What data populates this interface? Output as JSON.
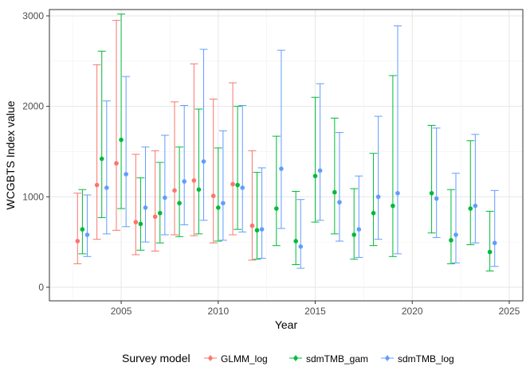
{
  "chart_data": {
    "type": "scatter",
    "subtype": "point-with-errorbars",
    "xlabel": "Year",
    "ylabel": "WCGBTS Index value",
    "xlim": [
      2001.3,
      2025.7
    ],
    "ylim": [
      -150,
      3070
    ],
    "x_ticks": [
      2005,
      2010,
      2015,
      2020,
      2025
    ],
    "y_ticks": [
      0,
      1000,
      2000,
      3000
    ],
    "x_tick_labels": [
      "2005",
      "2010",
      "2015",
      "2020",
      "2025"
    ],
    "y_tick_labels": [
      "0",
      "1000",
      "2000",
      "3000"
    ],
    "grid": true,
    "legend": {
      "title": "Survey model",
      "position": "bottom"
    },
    "series": [
      {
        "name": "GLMM_log",
        "color": "#F8766D",
        "offset": -0.25,
        "points": [
          {
            "year": 2003,
            "value": 510,
            "lower": 260,
            "upper": 1040
          },
          {
            "year": 2004,
            "value": 1130,
            "lower": 530,
            "upper": 2460
          },
          {
            "year": 2005,
            "value": 1370,
            "lower": 630,
            "upper": 2950
          },
          {
            "year": 2006,
            "value": 720,
            "lower": 360,
            "upper": 1470
          },
          {
            "year": 2007,
            "value": 780,
            "lower": 400,
            "upper": 1510
          },
          {
            "year": 2008,
            "value": 1070,
            "lower": 580,
            "upper": 2050
          },
          {
            "year": 2009,
            "value": 1180,
            "lower": 570,
            "upper": 2470
          },
          {
            "year": 2010,
            "value": 1010,
            "lower": 490,
            "upper": 2080
          },
          {
            "year": 2011,
            "value": 1140,
            "lower": 580,
            "upper": 2260
          },
          {
            "year": 2012,
            "value": 680,
            "lower": 300,
            "upper": 1510
          }
        ]
      },
      {
        "name": "sdmTMB_gam",
        "color": "#00BA38",
        "offset": 0,
        "points": [
          {
            "year": 2003,
            "value": 640,
            "lower": 370,
            "upper": 1080
          },
          {
            "year": 2004,
            "value": 1420,
            "lower": 770,
            "upper": 2610
          },
          {
            "year": 2005,
            "value": 1630,
            "lower": 870,
            "upper": 3020
          },
          {
            "year": 2006,
            "value": 700,
            "lower": 410,
            "upper": 1210
          },
          {
            "year": 2007,
            "value": 820,
            "lower": 490,
            "upper": 1380
          },
          {
            "year": 2008,
            "value": 930,
            "lower": 560,
            "upper": 1550
          },
          {
            "year": 2009,
            "value": 1080,
            "lower": 590,
            "upper": 1970
          },
          {
            "year": 2010,
            "value": 880,
            "lower": 510,
            "upper": 1540
          },
          {
            "year": 2011,
            "value": 1130,
            "lower": 640,
            "upper": 2000
          },
          {
            "year": 2012,
            "value": 630,
            "lower": 310,
            "upper": 1270
          },
          {
            "year": 2013,
            "value": 870,
            "lower": 460,
            "upper": 1670
          },
          {
            "year": 2014,
            "value": 510,
            "lower": 250,
            "upper": 1060
          },
          {
            "year": 2015,
            "value": 1230,
            "lower": 720,
            "upper": 2100
          },
          {
            "year": 2016,
            "value": 1050,
            "lower": 590,
            "upper": 1870
          },
          {
            "year": 2017,
            "value": 580,
            "lower": 310,
            "upper": 1090
          },
          {
            "year": 2018,
            "value": 820,
            "lower": 460,
            "upper": 1480
          },
          {
            "year": 2019,
            "value": 900,
            "lower": 340,
            "upper": 2340
          },
          {
            "year": 2021,
            "value": 1040,
            "lower": 600,
            "upper": 1790
          },
          {
            "year": 2022,
            "value": 520,
            "lower": 260,
            "upper": 1080
          },
          {
            "year": 2023,
            "value": 870,
            "lower": 470,
            "upper": 1620
          },
          {
            "year": 2024,
            "value": 390,
            "lower": 180,
            "upper": 840
          }
        ]
      },
      {
        "name": "sdmTMB_log",
        "color": "#619CFF",
        "offset": 0.25,
        "points": [
          {
            "year": 2003,
            "value": 580,
            "lower": 340,
            "upper": 1020
          },
          {
            "year": 2004,
            "value": 1100,
            "lower": 590,
            "upper": 2060
          },
          {
            "year": 2005,
            "value": 1250,
            "lower": 670,
            "upper": 2330
          },
          {
            "year": 2006,
            "value": 880,
            "lower": 500,
            "upper": 1550
          },
          {
            "year": 2007,
            "value": 990,
            "lower": 580,
            "upper": 1680
          },
          {
            "year": 2008,
            "value": 1170,
            "lower": 690,
            "upper": 2010
          },
          {
            "year": 2009,
            "value": 1390,
            "lower": 740,
            "upper": 2630
          },
          {
            "year": 2010,
            "value": 930,
            "lower": 520,
            "upper": 1730
          },
          {
            "year": 2011,
            "value": 1100,
            "lower": 610,
            "upper": 2010
          },
          {
            "year": 2012,
            "value": 640,
            "lower": 320,
            "upper": 1320
          },
          {
            "year": 2013,
            "value": 1310,
            "lower": 650,
            "upper": 2620
          },
          {
            "year": 2014,
            "value": 450,
            "lower": 210,
            "upper": 970
          },
          {
            "year": 2015,
            "value": 1290,
            "lower": 740,
            "upper": 2250
          },
          {
            "year": 2016,
            "value": 940,
            "lower": 510,
            "upper": 1710
          },
          {
            "year": 2017,
            "value": 640,
            "lower": 330,
            "upper": 1230
          },
          {
            "year": 2018,
            "value": 1000,
            "lower": 530,
            "upper": 1890
          },
          {
            "year": 2019,
            "value": 1040,
            "lower": 370,
            "upper": 2890
          },
          {
            "year": 2021,
            "value": 980,
            "lower": 550,
            "upper": 1760
          },
          {
            "year": 2022,
            "value": 580,
            "lower": 270,
            "upper": 1260
          },
          {
            "year": 2023,
            "value": 900,
            "lower": 490,
            "upper": 1690
          },
          {
            "year": 2024,
            "value": 490,
            "lower": 230,
            "upper": 1070
          }
        ]
      }
    ]
  }
}
